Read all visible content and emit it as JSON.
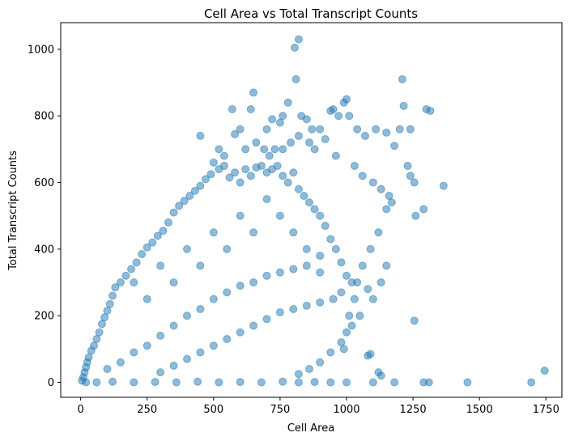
{
  "chart_data": {
    "type": "scatter",
    "title": "Cell Area vs Total Transcript Counts",
    "xlabel": "Cell Area",
    "ylabel": "Total Transcript Counts",
    "xlim": [
      -75,
      1810
    ],
    "ylim": [
      -45,
      1080
    ],
    "xticks": [
      0,
      250,
      500,
      750,
      1000,
      1250,
      1500,
      1750
    ],
    "yticks": [
      0,
      200,
      400,
      600,
      800,
      1000
    ],
    "grid": false,
    "marker_color": "#1f77b4",
    "marker_alpha": 0.5,
    "series": [
      {
        "points": [
          [
            5,
            5
          ],
          [
            10,
            15
          ],
          [
            15,
            30
          ],
          [
            20,
            45
          ],
          [
            25,
            60
          ],
          [
            30,
            75
          ],
          [
            40,
            95
          ],
          [
            50,
            110
          ],
          [
            60,
            130
          ],
          [
            70,
            150
          ],
          [
            80,
            175
          ],
          [
            90,
            195
          ],
          [
            100,
            215
          ],
          [
            110,
            235
          ],
          [
            120,
            260
          ],
          [
            130,
            285
          ],
          [
            150,
            300
          ],
          [
            170,
            320
          ],
          [
            190,
            340
          ],
          [
            210,
            360
          ],
          [
            230,
            385
          ],
          [
            250,
            405
          ],
          [
            270,
            420
          ],
          [
            290,
            440
          ],
          [
            310,
            455
          ],
          [
            330,
            480
          ],
          [
            350,
            510
          ],
          [
            370,
            530
          ],
          [
            390,
            545
          ],
          [
            410,
            560
          ],
          [
            430,
            575
          ],
          [
            450,
            590
          ],
          [
            470,
            610
          ],
          [
            490,
            625
          ],
          [
            520,
            640
          ],
          [
            540,
            650
          ],
          [
            560,
            615
          ],
          [
            580,
            630
          ],
          [
            600,
            600
          ],
          [
            620,
            640
          ],
          [
            640,
            620
          ],
          [
            660,
            645
          ],
          [
            680,
            650
          ],
          [
            700,
            630
          ],
          [
            720,
            640
          ],
          [
            740,
            650
          ],
          [
            760,
            620
          ],
          [
            780,
            600
          ],
          [
            800,
            630
          ],
          [
            820,
            580
          ],
          [
            840,
            560
          ],
          [
            860,
            540
          ],
          [
            880,
            520
          ],
          [
            900,
            500
          ],
          [
            920,
            470
          ],
          [
            940,
            430
          ],
          [
            960,
            400
          ],
          [
            980,
            360
          ],
          [
            1000,
            320
          ],
          [
            1020,
            300
          ],
          [
            100,
            40
          ],
          [
            150,
            60
          ],
          [
            200,
            90
          ],
          [
            250,
            110
          ],
          [
            300,
            140
          ],
          [
            350,
            170
          ],
          [
            400,
            200
          ],
          [
            450,
            220
          ],
          [
            500,
            250
          ],
          [
            550,
            270
          ],
          [
            600,
            290
          ],
          [
            650,
            300
          ],
          [
            700,
            320
          ],
          [
            750,
            330
          ],
          [
            800,
            340
          ],
          [
            850,
            350
          ],
          [
            900,
            330
          ],
          [
            300,
            30
          ],
          [
            350,
            50
          ],
          [
            400,
            70
          ],
          [
            450,
            90
          ],
          [
            500,
            110
          ],
          [
            550,
            130
          ],
          [
            600,
            150
          ],
          [
            650,
            170
          ],
          [
            700,
            190
          ],
          [
            750,
            210
          ],
          [
            800,
            220
          ],
          [
            850,
            230
          ],
          [
            900,
            240
          ],
          [
            950,
            250
          ],
          [
            980,
            270
          ],
          [
            200,
            300
          ],
          [
            250,
            250
          ],
          [
            300,
            350
          ],
          [
            350,
            300
          ],
          [
            400,
            400
          ],
          [
            450,
            350
          ],
          [
            500,
            450
          ],
          [
            550,
            400
          ],
          [
            600,
            500
          ],
          [
            650,
            450
          ],
          [
            700,
            550
          ],
          [
            750,
            500
          ],
          [
            800,
            450
          ],
          [
            850,
            400
          ],
          [
            900,
            380
          ],
          [
            20,
            0
          ],
          [
            60,
            0
          ],
          [
            120,
            2
          ],
          [
            200,
            0
          ],
          [
            280,
            1
          ],
          [
            360,
            0
          ],
          [
            440,
            2
          ],
          [
            520,
            0
          ],
          [
            600,
            1
          ],
          [
            680,
            0
          ],
          [
            760,
            2
          ],
          [
            820,
            0
          ],
          [
            880,
            1
          ],
          [
            940,
            0
          ],
          [
            1000,
            0
          ],
          [
            1100,
            0
          ],
          [
            1180,
            0
          ],
          [
            1290,
            0
          ],
          [
            1310,
            0
          ],
          [
            1455,
            0
          ],
          [
            1695,
            0
          ],
          [
            1745,
            35
          ],
          [
            1130,
            20
          ],
          [
            1120,
            30
          ],
          [
            1090,
            85
          ],
          [
            1080,
            80
          ],
          [
            580,
            745
          ],
          [
            600,
            760
          ],
          [
            640,
            820
          ],
          [
            650,
            870
          ],
          [
            570,
            820
          ],
          [
            700,
            760
          ],
          [
            720,
            790
          ],
          [
            750,
            780
          ],
          [
            760,
            800
          ],
          [
            780,
            840
          ],
          [
            810,
            910
          ],
          [
            805,
            1005
          ],
          [
            820,
            1030
          ],
          [
            830,
            800
          ],
          [
            850,
            790
          ],
          [
            870,
            760
          ],
          [
            900,
            760
          ],
          [
            920,
            730
          ],
          [
            940,
            815
          ],
          [
            950,
            820
          ],
          [
            970,
            800
          ],
          [
            990,
            840
          ],
          [
            1000,
            850
          ],
          [
            1010,
            800
          ],
          [
            1040,
            760
          ],
          [
            1070,
            740
          ],
          [
            1110,
            760
          ],
          [
            1150,
            750
          ],
          [
            1180,
            710
          ],
          [
            1200,
            760
          ],
          [
            1210,
            910
          ],
          [
            1215,
            830
          ],
          [
            1240,
            760
          ],
          [
            1300,
            820
          ],
          [
            1315,
            815
          ],
          [
            1230,
            650
          ],
          [
            1240,
            620
          ],
          [
            1255,
            600
          ],
          [
            1260,
            500
          ],
          [
            1290,
            520
          ],
          [
            1365,
            590
          ],
          [
            1255,
            185
          ],
          [
            1150,
            520
          ],
          [
            1120,
            450
          ],
          [
            1090,
            400
          ],
          [
            1060,
            350
          ],
          [
            1040,
            300
          ],
          [
            1030,
            250
          ],
          [
            1010,
            200
          ],
          [
            1000,
            150
          ],
          [
            990,
            100
          ],
          [
            450,
            740
          ],
          [
            500,
            660
          ],
          [
            520,
            700
          ],
          [
            540,
            680
          ],
          [
            620,
            700
          ],
          [
            660,
            720
          ],
          [
            690,
            700
          ],
          [
            710,
            680
          ],
          [
            730,
            700
          ],
          [
            760,
            700
          ],
          [
            790,
            720
          ],
          [
            820,
            740
          ],
          [
            860,
            720
          ],
          [
            880,
            700
          ],
          [
            960,
            680
          ],
          [
            1030,
            650
          ],
          [
            1060,
            620
          ],
          [
            1100,
            600
          ],
          [
            1130,
            580
          ],
          [
            1160,
            560
          ],
          [
            1170,
            540
          ],
          [
            1150,
            350
          ],
          [
            1130,
            300
          ],
          [
            1080,
            280
          ],
          [
            1100,
            250
          ],
          [
            1050,
            200
          ],
          [
            1020,
            170
          ],
          [
            980,
            120
          ],
          [
            940,
            90
          ],
          [
            900,
            60
          ],
          [
            860,
            40
          ],
          [
            820,
            25
          ]
        ]
      }
    ]
  }
}
